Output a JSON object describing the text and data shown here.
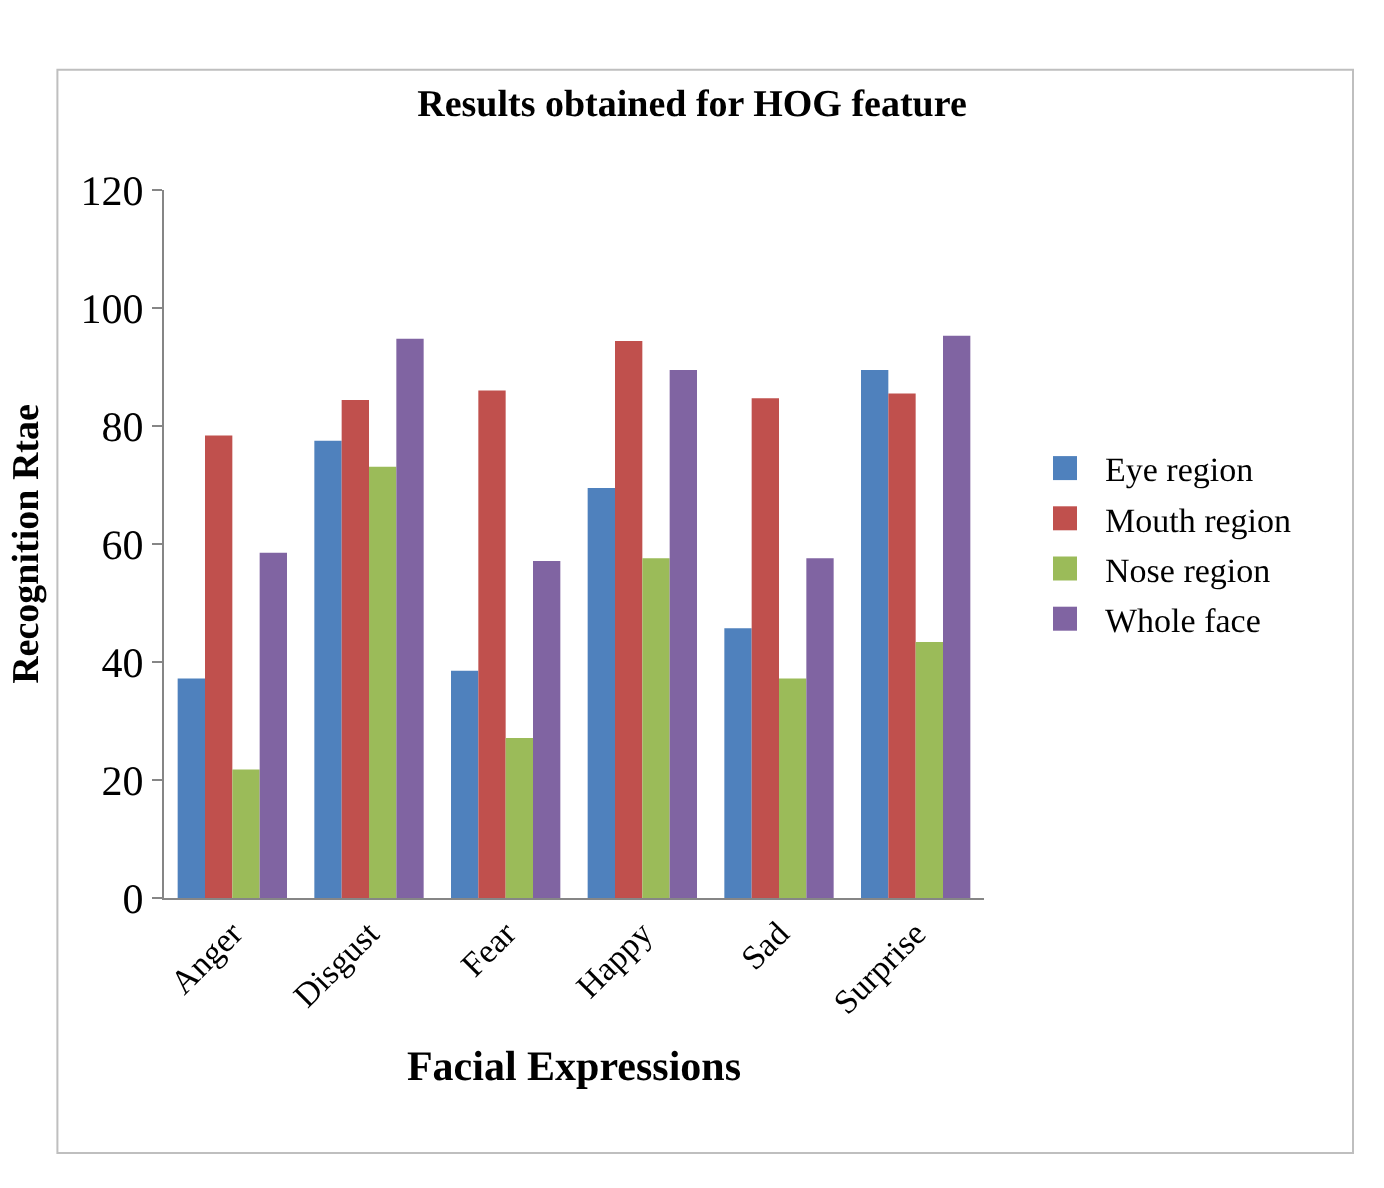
{
  "chart_data": {
    "type": "bar",
    "title": "Results obtained for HOG feature",
    "xlabel": "Facial Expressions",
    "ylabel": "Recognition Rtae",
    "categories": [
      "Anger",
      "Disgust",
      "Fear",
      "Happy",
      "Sad",
      "Surprise"
    ],
    "series": [
      {
        "name": "Eye region",
        "color": "#4f81bd",
        "values": [
          37.2,
          77.5,
          38.5,
          69.5,
          45.7,
          89.5
        ]
      },
      {
        "name": "Mouth region",
        "color": "#c0504d",
        "values": [
          78.4,
          84.4,
          86,
          94.4,
          84.7,
          85.5
        ]
      },
      {
        "name": "Nose region",
        "color": "#9bbb59",
        "values": [
          21.8,
          73.1,
          27.1,
          57.6,
          37.2,
          43.4
        ]
      },
      {
        "name": "Whole face",
        "color": "#8064a2",
        "values": [
          58.5,
          94.8,
          57.1,
          89.5,
          57.6,
          95.3
        ]
      }
    ],
    "ylim": [
      0,
      120
    ],
    "yticks": [
      0,
      20,
      40,
      60,
      80,
      100,
      120
    ],
    "grid": false,
    "legend": "right"
  }
}
